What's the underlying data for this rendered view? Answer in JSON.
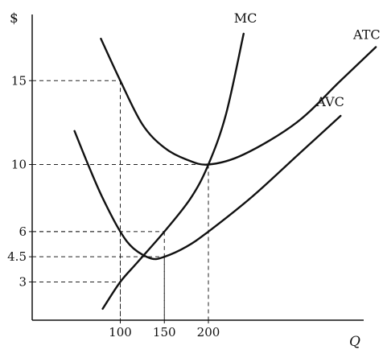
{
  "chart_data": {
    "type": "line",
    "xlabel": "Q",
    "ylabel": "$",
    "x_ticks": [
      "100",
      "150",
      "200"
    ],
    "y_ticks": [
      "3",
      "4.5",
      "6",
      "10",
      "15"
    ],
    "grid": false,
    "reference_lines": [
      {
        "x": 100,
        "y": 15
      },
      {
        "x": 100,
        "y": 6
      },
      {
        "x": 100,
        "y": 3
      },
      {
        "x": 150,
        "y": 6
      },
      {
        "x": 150,
        "y": 4.5
      },
      {
        "x": 200,
        "y": 10
      }
    ],
    "series": [
      {
        "name": "MC",
        "x": [
          80,
          100,
          120,
          150,
          180,
          200,
          220,
          240
        ],
        "y": [
          1.4,
          3,
          4.2,
          6,
          8,
          10,
          13,
          17.8
        ]
      },
      {
        "name": "ATC",
        "x": [
          78,
          100,
          125,
          150,
          175,
          200,
          240,
          300,
          350,
          390
        ],
        "y": [
          17.5,
          15,
          12.4,
          11,
          10.3,
          10,
          10.6,
          12.5,
          15,
          17
        ]
      },
      {
        "name": "AVC",
        "x": [
          48,
          65,
          80,
          100,
          115,
          135,
          150,
          175,
          200,
          250,
          300,
          350
        ],
        "y": [
          12,
          9.8,
          8,
          6,
          5,
          4.4,
          4.5,
          5.1,
          6,
          8.1,
          10.5,
          12.9
        ]
      }
    ],
    "colors": {
      "line": "#111111",
      "reference": "#222222"
    }
  }
}
